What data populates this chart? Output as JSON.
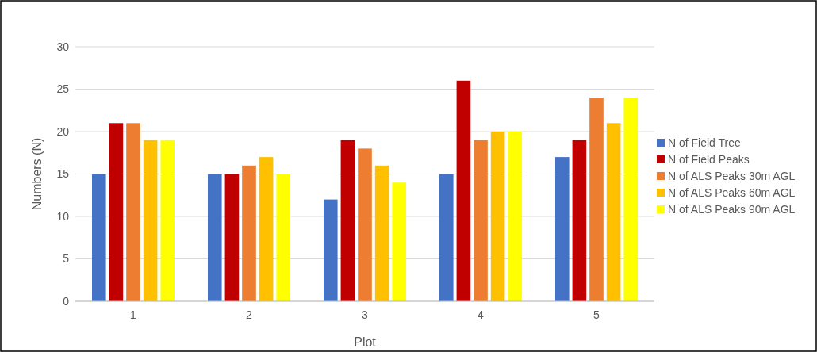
{
  "chart_data": {
    "type": "bar",
    "xlabel": "Plot",
    "ylabel": "Numbers (N)",
    "categories": [
      "1",
      "2",
      "3",
      "4",
      "5"
    ],
    "ylim": [
      0,
      30
    ],
    "yticks": [
      0,
      5,
      10,
      15,
      20,
      25,
      30
    ],
    "grid": "y",
    "legend": "right",
    "series": [
      {
        "name": "N of Field Tree",
        "color": "#4472c4",
        "values": [
          15,
          15,
          12,
          15,
          17
        ]
      },
      {
        "name": "N of Field Peaks",
        "color": "#c00000",
        "values": [
          21,
          15,
          19,
          26,
          19
        ]
      },
      {
        "name": "N of ALS Peaks 30m AGL",
        "color": "#ed7d31",
        "values": [
          21,
          16,
          18,
          19,
          24
        ]
      },
      {
        "name": "N of ALS Peaks 60m AGL",
        "color": "#ffc000",
        "values": [
          19,
          17,
          16,
          20,
          21
        ]
      },
      {
        "name": "N of ALS Peaks 90m AGL",
        "color": "#ffff00",
        "values": [
          19,
          15,
          14,
          20,
          24
        ]
      }
    ]
  }
}
